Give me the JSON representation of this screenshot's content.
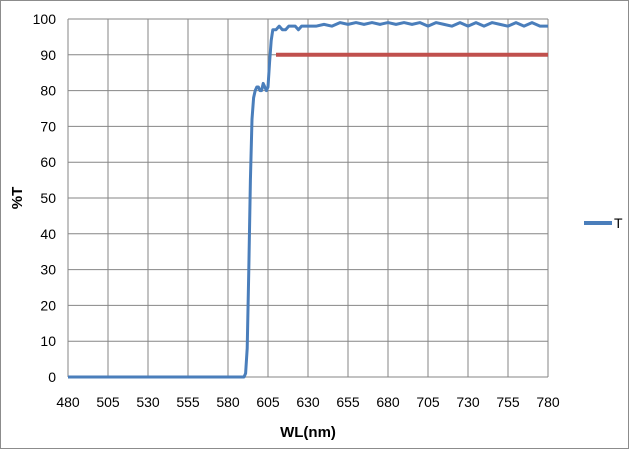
{
  "chart_data": {
    "type": "line",
    "xlabel": "WL(nm)",
    "ylabel": "%T",
    "xlim": [
      480,
      780
    ],
    "ylim": [
      0,
      100
    ],
    "x_ticks": [
      480,
      505,
      530,
      555,
      580,
      605,
      630,
      655,
      680,
      705,
      730,
      755,
      780
    ],
    "y_ticks": [
      0,
      10,
      20,
      30,
      40,
      50,
      60,
      70,
      80,
      90,
      100
    ],
    "grid": true,
    "legend_position": "right",
    "series": [
      {
        "name": "T",
        "color": "#4a7ebb",
        "points": [
          [
            480,
            0
          ],
          [
            500,
            0
          ],
          [
            520,
            0
          ],
          [
            540,
            0
          ],
          [
            560,
            0
          ],
          [
            575,
            0
          ],
          [
            585,
            0
          ],
          [
            590,
            0
          ],
          [
            591,
            1
          ],
          [
            592,
            8
          ],
          [
            593,
            30
          ],
          [
            594,
            55
          ],
          [
            595,
            72
          ],
          [
            596,
            78
          ],
          [
            597,
            80
          ],
          [
            598,
            81
          ],
          [
            599,
            81
          ],
          [
            600,
            80
          ],
          [
            601,
            80
          ],
          [
            602,
            82
          ],
          [
            603,
            81
          ],
          [
            604,
            80
          ],
          [
            605,
            81
          ],
          [
            606,
            88
          ],
          [
            607,
            94
          ],
          [
            608,
            97
          ],
          [
            610,
            97
          ],
          [
            612,
            98
          ],
          [
            614,
            97
          ],
          [
            616,
            97
          ],
          [
            618,
            98
          ],
          [
            620,
            98
          ],
          [
            622,
            98
          ],
          [
            624,
            97
          ],
          [
            626,
            98
          ],
          [
            628,
            98
          ],
          [
            630,
            98
          ],
          [
            635,
            98
          ],
          [
            640,
            98.5
          ],
          [
            645,
            98
          ],
          [
            650,
            99
          ],
          [
            655,
            98.5
          ],
          [
            660,
            99
          ],
          [
            665,
            98.5
          ],
          [
            670,
            99
          ],
          [
            675,
            98.5
          ],
          [
            680,
            99
          ],
          [
            685,
            98.5
          ],
          [
            690,
            99
          ],
          [
            695,
            98.5
          ],
          [
            700,
            99
          ],
          [
            705,
            98
          ],
          [
            710,
            99
          ],
          [
            715,
            98.5
          ],
          [
            720,
            98
          ],
          [
            725,
            99
          ],
          [
            730,
            98
          ],
          [
            735,
            99
          ],
          [
            740,
            98
          ],
          [
            745,
            99
          ],
          [
            750,
            98.5
          ],
          [
            755,
            98
          ],
          [
            760,
            99
          ],
          [
            765,
            98
          ],
          [
            770,
            99
          ],
          [
            775,
            98
          ],
          [
            780,
            98
          ]
        ]
      },
      {
        "color": "#c0504d",
        "points": [
          [
            610,
            90
          ],
          [
            780,
            90
          ]
        ]
      }
    ]
  }
}
